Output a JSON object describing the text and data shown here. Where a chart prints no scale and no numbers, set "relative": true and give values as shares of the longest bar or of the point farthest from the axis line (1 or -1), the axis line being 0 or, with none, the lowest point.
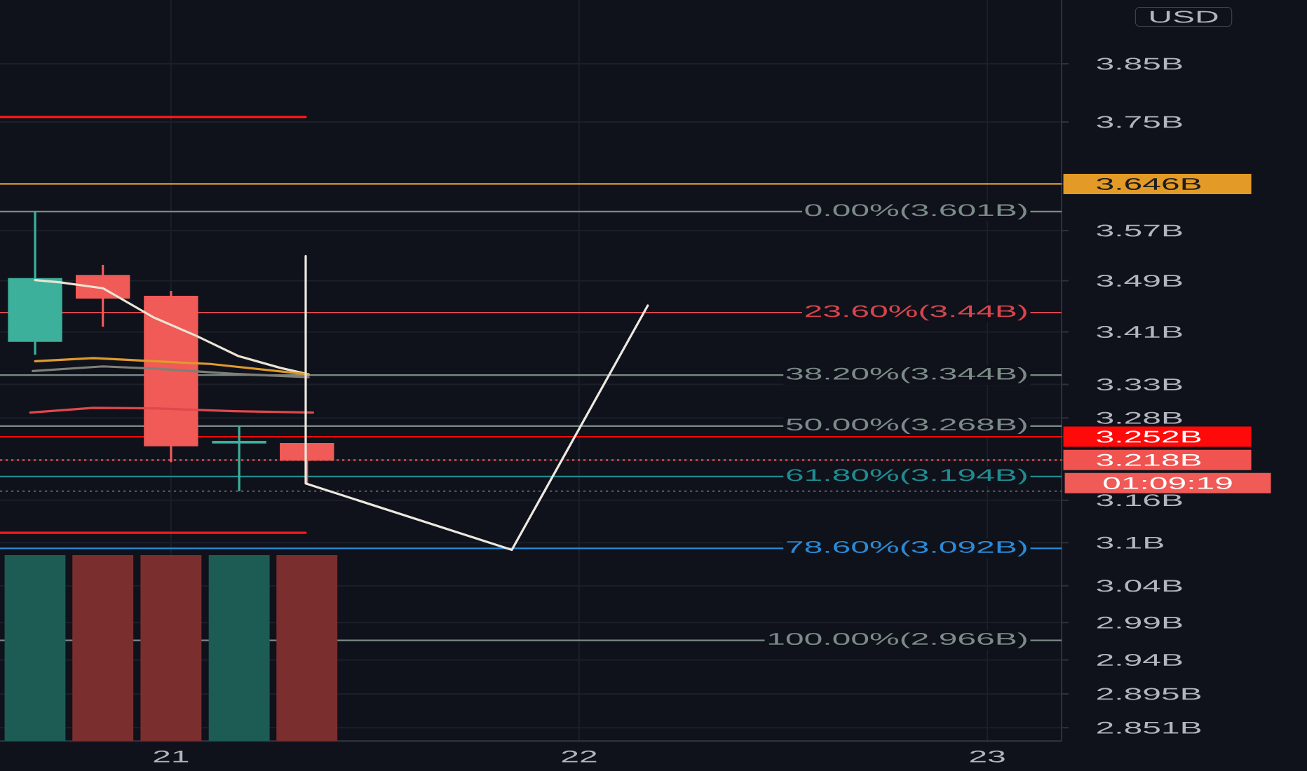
{
  "chart_data": [
    {
      "type": "candlestick",
      "x": [
        20.667,
        20.833,
        21.0,
        21.167,
        21.333
      ],
      "ohlc": [
        [
          3.396,
          3.601,
          3.375,
          3.493
        ],
        [
          3.498,
          3.515,
          3.418,
          3.463
        ],
        [
          3.465,
          3.474,
          3.215,
          3.239
        ],
        [
          3.243,
          3.268,
          3.173,
          3.245
        ],
        [
          3.242,
          3.242,
          3.182,
          3.218
        ]
      ],
      "colors": [
        "#3cb09b",
        "#f05a57",
        "#f05a57",
        "#3cb09b",
        "#f05a57"
      ],
      "series": [
        {
          "type": "line",
          "color": "#e9e4d4",
          "x": [
            20.667,
            20.729,
            20.833,
            20.959,
            21.062,
            21.165,
            21.268,
            21.337
          ],
          "values": [
            3.491,
            3.487,
            3.478,
            3.432,
            3.404,
            3.373,
            3.355,
            3.345
          ]
        },
        {
          "type": "line",
          "color": "#e09a2c",
          "x": [
            20.667,
            20.81,
            20.959,
            21.096,
            21.337
          ],
          "values": [
            3.365,
            3.37,
            3.365,
            3.361,
            3.345
          ]
        },
        {
          "type": "line",
          "color": "#7f7f78",
          "x": [
            20.661,
            20.833,
            20.959,
            21.154,
            21.337
          ],
          "values": [
            3.35,
            3.357,
            3.354,
            3.346,
            3.341
          ]
        },
        {
          "type": "line",
          "color": "#e0484c",
          "x": [
            20.655,
            20.81,
            20.959,
            21.154,
            21.348
          ],
          "values": [
            3.288,
            3.295,
            3.294,
            3.29,
            3.288
          ]
        },
        {
          "type": "line",
          "color": "#ff1a1a",
          "x": [
            20.581,
            21.33
          ],
          "values": [
            3.758,
            3.758
          ]
        },
        {
          "type": "line",
          "color": "#ff1a1a",
          "x": [
            20.581,
            21.33
          ],
          "values": [
            3.114,
            3.114
          ]
        },
        {
          "type": "line",
          "color": "#ece8e0",
          "x": [
            21.33,
            21.33,
            21.835,
            22.168
          ],
          "values": [
            3.529,
            3.184,
            3.09,
            3.451
          ]
        }
      ],
      "ref_lines": [
        {
          "axis": "y",
          "value": 3.601,
          "label": "0.00%(3.601B)",
          "color": "#7c8a88"
        },
        {
          "axis": "y",
          "value": 3.44,
          "label": "23.60%(3.44B)",
          "color": "#d8444c"
        },
        {
          "axis": "y",
          "value": 3.344,
          "label": "38.20%(3.344B)",
          "color": "#7c8a88"
        },
        {
          "axis": "y",
          "value": 3.268,
          "label": "50.00%(3.268B)",
          "color": "#7c8a88"
        },
        {
          "axis": "y",
          "value": 3.194,
          "label": "61.80%(3.194B)",
          "color": "#1f8c92"
        },
        {
          "axis": "y",
          "value": 3.092,
          "label": "78.60%(3.092B)",
          "color": "#2a8ad8"
        },
        {
          "axis": "y",
          "value": 2.966,
          "label": "100.00%(2.966B)",
          "color": "#7c8a88"
        },
        {
          "axis": "y",
          "value": 3.646,
          "color": "#e39a26"
        },
        {
          "axis": "y",
          "value": 3.252,
          "color": "#ff0a0a"
        },
        {
          "axis": "y",
          "value": 3.218,
          "color": "#f05350",
          "line_style": "dotted"
        },
        {
          "axis": "y",
          "value": 3.173,
          "color": "#5d606b",
          "line_style": "dotted"
        }
      ],
      "xlim": [
        20.581,
        23.182
      ],
      "xticks": [
        21,
        22,
        23
      ],
      "ylim": [
        2.834,
        3.963
      ],
      "yticks": [
        {
          "value": 3.85,
          "label": "3.85B"
        },
        {
          "value": 3.75,
          "label": "3.75B"
        },
        {
          "value": 3.646,
          "label": "3.646B"
        },
        {
          "value": 3.57,
          "label": "3.57B"
        },
        {
          "value": 3.49,
          "label": "3.49B"
        },
        {
          "value": 3.41,
          "label": "3.41B"
        },
        {
          "value": 3.33,
          "label": "3.33B"
        },
        {
          "value": 3.28,
          "label": "3.28B"
        },
        {
          "value": 3.252,
          "label": "3.252B"
        },
        {
          "value": 3.218,
          "label": "3.218B"
        },
        {
          "value": 3.16,
          "label": "3.16B"
        },
        {
          "value": 3.1,
          "label": "3.1B"
        },
        {
          "value": 3.04,
          "label": "3.04B"
        },
        {
          "value": 2.99,
          "label": "2.99B"
        },
        {
          "value": 2.94,
          "label": "2.94B"
        },
        {
          "value": 2.895,
          "label": "2.895B"
        },
        {
          "value": 2.851,
          "label": "2.851B"
        }
      ],
      "log": true,
      "grid": true,
      "tick_labels": "y",
      "ylabel": "USD",
      "annotations": [
        "01:09:19"
      ]
    },
    {
      "type": "bar",
      "relative": true,
      "x": [
        20.667,
        20.833,
        21.0,
        21.167,
        21.333
      ],
      "values": [
        1,
        1,
        1,
        1,
        1
      ],
      "colors": [
        "#1d5c55",
        "#7b2e2e",
        "#7b2e2e",
        "#1d5c55",
        "#7b2e2e"
      ],
      "xlim": [
        20.581,
        23.182
      ],
      "xticks": [
        21,
        22,
        23
      ],
      "tick_labels": "x"
    }
  ]
}
